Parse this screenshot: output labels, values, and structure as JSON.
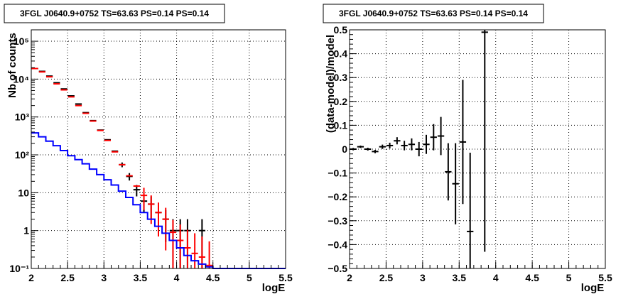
{
  "chart_data": [
    {
      "type": "scatter",
      "title": "3FGL J0640.9+0752 TS=63.63 PS=0.14 PS=0.14",
      "xlabel": "logE",
      "ylabel": "Nb of counts",
      "xlim": [
        2,
        5.5
      ],
      "ylim": [
        0.1,
        200000
      ],
      "yscale": "log",
      "grid": true,
      "xticks": [
        2,
        2.5,
        3,
        3.5,
        4,
        4.5,
        5,
        5.5
      ],
      "xtick_labels": [
        "2",
        "2.5",
        "3",
        "3.5",
        "4",
        "4.5",
        "5",
        "5.5"
      ],
      "yticks": [
        0.1,
        1,
        10,
        100,
        1000,
        10000,
        100000
      ],
      "ytick_labels": [
        "10⁻¹",
        "1",
        "10",
        "10²",
        "10³",
        "10⁴",
        "10⁵"
      ],
      "series": [
        {
          "color": "#000000",
          "kind": "errorbar",
          "x": [
            2.05,
            2.15,
            2.25,
            2.35,
            2.45,
            2.55,
            2.65,
            2.75,
            2.85,
            2.95,
            3.05,
            3.15,
            3.25,
            3.35,
            3.45,
            3.55,
            3.65,
            3.75,
            3.85,
            3.95,
            4.05,
            4.15,
            4.35
          ],
          "y": [
            19000,
            16000,
            12000,
            8000,
            5500,
            3600,
            2200,
            1300,
            800,
            450,
            250,
            125,
            55,
            27,
            12,
            6,
            5,
            3,
            2,
            1,
            1,
            1,
            1
          ],
          "yerr_low": [
            0,
            0,
            0,
            0,
            0,
            0,
            0,
            0,
            0,
            0,
            0,
            0,
            8,
            6,
            4,
            3,
            3,
            2,
            1.5,
            0.9,
            0.9,
            0.9,
            0.9
          ],
          "yerr_high": [
            0,
            0,
            0,
            0,
            0,
            0,
            0,
            0,
            0,
            0,
            0,
            0,
            8,
            6,
            4,
            3,
            3,
            2,
            1.5,
            1,
            1,
            1,
            1
          ]
        },
        {
          "color": "#ff0000",
          "kind": "errorbar",
          "x": [
            2.05,
            2.15,
            2.25,
            2.35,
            2.45,
            2.55,
            2.65,
            2.75,
            2.85,
            2.95,
            3.05,
            3.15,
            3.25,
            3.35,
            3.45,
            3.55,
            3.65,
            3.75,
            3.85,
            3.95,
            4.05,
            4.15,
            4.25,
            4.35,
            4.45
          ],
          "y": [
            19000,
            15500,
            11500,
            7500,
            5200,
            3400,
            2000,
            1250,
            780,
            440,
            240,
            120,
            55,
            28,
            15,
            8.5,
            5,
            3,
            2,
            0.9,
            0.55,
            0.35,
            0.25,
            0.2,
            0.12
          ],
          "yerr_low": [
            0,
            0,
            0,
            0,
            0,
            0,
            0,
            0,
            0,
            0,
            0,
            0,
            0,
            0,
            0,
            5,
            3.5,
            2.3,
            1.7,
            0.85,
            0.5,
            0.33,
            0.24,
            0.19,
            0.11
          ],
          "yerr_high": [
            0,
            0,
            0,
            0,
            0,
            0,
            0,
            0,
            0,
            0,
            0,
            0,
            0,
            0,
            0,
            5,
            3.5,
            2.5,
            2,
            1,
            0.9,
            0.7,
            0.6,
            0.5,
            0.4
          ]
        },
        {
          "color": "#0000ff",
          "kind": "step",
          "edges": [
            2.0,
            2.1,
            2.2,
            2.3,
            2.4,
            2.5,
            2.6,
            2.7,
            2.8,
            2.9,
            3.0,
            3.1,
            3.2,
            3.3,
            3.4,
            3.5,
            3.6,
            3.7,
            3.8,
            3.9,
            4.0,
            4.1,
            4.2,
            4.3,
            4.4,
            4.5,
            5.5
          ],
          "values": [
            380,
            300,
            230,
            175,
            130,
            95,
            75,
            58,
            42,
            30,
            22,
            16,
            11,
            7.5,
            4.8,
            3,
            2,
            1.3,
            0.85,
            0.55,
            0.35,
            0.22,
            0.16,
            0.13,
            0.11,
            0.1
          ]
        }
      ]
    },
    {
      "type": "scatter",
      "title": "3FGL J0640.9+0752 TS=63.63 PS=0.14 PS=0.14",
      "xlabel": "logE",
      "ylabel": "(data-model)/model",
      "xlim": [
        2,
        5.5
      ],
      "ylim": [
        -0.5,
        0.5
      ],
      "grid": true,
      "xticks": [
        2,
        2.5,
        3,
        3.5,
        4,
        4.5,
        5,
        5.5
      ],
      "xtick_labels": [
        "2",
        "2.5",
        "3",
        "3.5",
        "4",
        "4.5",
        "5",
        "5.5"
      ],
      "yticks": [
        -0.5,
        -0.4,
        -0.3,
        -0.2,
        -0.1,
        0,
        0.1,
        0.2,
        0.3,
        0.4,
        0.5
      ],
      "ytick_labels": [
        "−0.5",
        "−0.4",
        "−0.3",
        "−0.2",
        "−0.1",
        "0",
        "0.1",
        "0.2",
        "0.3",
        "0.4",
        "0.5"
      ],
      "series": [
        {
          "color": "#000000",
          "kind": "errorbar",
          "x": [
            2.05,
            2.15,
            2.25,
            2.35,
            2.45,
            2.55,
            2.65,
            2.75,
            2.85,
            2.95,
            3.05,
            3.15,
            3.25,
            3.35,
            3.45,
            3.55,
            3.65,
            3.85
          ],
          "y": [
            0.0,
            0.01,
            0.0,
            -0.01,
            0.01,
            0.015,
            0.035,
            0.015,
            0.02,
            0.0,
            0.02,
            0.05,
            0.055,
            -0.095,
            -0.145,
            0.03,
            -0.345,
            0.49
          ],
          "yerr": [
            0.005,
            0.005,
            0.006,
            0.007,
            0.009,
            0.012,
            0.015,
            0.02,
            0.025,
            0.03,
            0.04,
            0.055,
            0.08,
            0.12,
            0.17,
            0.26,
            0.33,
            0.92
          ]
        }
      ]
    }
  ]
}
